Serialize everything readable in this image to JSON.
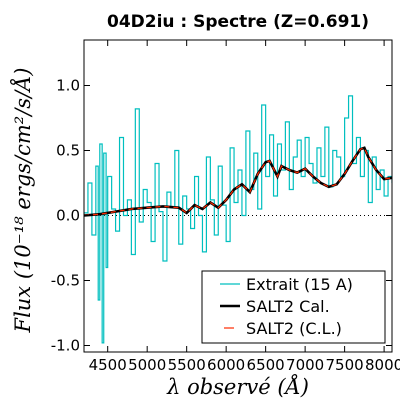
{
  "chart_data": {
    "type": "line",
    "title": "04D2iu : Spectre (Z=0.691)",
    "xlabel": "λ observé (Å)",
    "ylabel": "Flux (10⁻¹⁸ ergs/cm²/s/Å)",
    "xlim": [
      4200,
      8100
    ],
    "ylim": [
      -1.05,
      1.35
    ],
    "xticks": [
      4500,
      5000,
      5500,
      6000,
      6500,
      7000,
      7500,
      8000
    ],
    "yticks": [
      -1.0,
      -0.5,
      0.0,
      0.5,
      1.0
    ],
    "xtick_labels": [
      "4500",
      "5000",
      "5500",
      "6000",
      "6500",
      "7000",
      "7500",
      "8000"
    ],
    "ytick_labels": [
      "-1.0",
      "-0.5",
      "0.0",
      "0.5",
      "1.0"
    ],
    "zero_line": true,
    "legend_position": "lower-right",
    "series": [
      {
        "name": "Extrait (15 A)",
        "color": "#00bfbf",
        "style": "steps",
        "x": [
          4200,
          4250,
          4300,
          4350,
          4380,
          4400,
          4430,
          4450,
          4480,
          4500,
          4550,
          4600,
          4650,
          4700,
          4750,
          4800,
          4850,
          4900,
          4950,
          5000,
          5050,
          5100,
          5150,
          5200,
          5250,
          5300,
          5350,
          5400,
          5450,
          5500,
          5550,
          5600,
          5650,
          5700,
          5750,
          5800,
          5850,
          5900,
          5950,
          6000,
          6050,
          6100,
          6150,
          6200,
          6250,
          6300,
          6350,
          6400,
          6450,
          6500,
          6550,
          6600,
          6650,
          6700,
          6750,
          6800,
          6850,
          6900,
          6950,
          7000,
          7050,
          7100,
          7150,
          7200,
          7250,
          7300,
          7350,
          7400,
          7450,
          7500,
          7550,
          7600,
          7650,
          7700,
          7750,
          7800,
          7850,
          7900,
          7950,
          8000,
          8050,
          8100
        ],
        "y": [
          0.02,
          0.25,
          -0.15,
          0.38,
          -0.65,
          0.55,
          -0.98,
          0.48,
          -0.4,
          0.3,
          0.05,
          -0.12,
          0.6,
          0.0,
          0.12,
          -0.3,
          0.82,
          -0.05,
          0.2,
          0.1,
          -0.2,
          0.4,
          0.03,
          -0.35,
          0.18,
          0.06,
          0.5,
          -0.22,
          0.15,
          0.05,
          -0.1,
          0.3,
          0.0,
          -0.28,
          0.45,
          0.12,
          -0.15,
          0.38,
          0.08,
          -0.2,
          0.52,
          0.1,
          0.35,
          0.0,
          0.65,
          0.2,
          0.48,
          0.05,
          0.85,
          0.3,
          0.62,
          0.15,
          0.55,
          0.35,
          0.72,
          0.2,
          0.45,
          0.58,
          0.3,
          0.6,
          0.4,
          0.25,
          0.52,
          0.3,
          0.68,
          0.22,
          0.5,
          0.45,
          0.3,
          0.75,
          0.92,
          0.4,
          0.6,
          0.3,
          0.5,
          0.1,
          0.45,
          0.2,
          0.35,
          0.15,
          0.3,
          0.25
        ]
      },
      {
        "name": "SALT2 Cal.",
        "color": "#000000",
        "style": "line",
        "x": [
          4200,
          4400,
          4600,
          4800,
          5000,
          5200,
          5400,
          5500,
          5600,
          5700,
          5800,
          5900,
          6000,
          6100,
          6200,
          6300,
          6400,
          6500,
          6550,
          6600,
          6650,
          6700,
          6800,
          6900,
          7000,
          7100,
          7200,
          7300,
          7400,
          7500,
          7600,
          7700,
          7750,
          7800,
          7900,
          8000,
          8100
        ],
        "y": [
          0.0,
          0.01,
          0.03,
          0.05,
          0.06,
          0.07,
          0.06,
          0.02,
          0.08,
          0.05,
          0.1,
          0.06,
          0.12,
          0.2,
          0.24,
          0.18,
          0.32,
          0.41,
          0.42,
          0.36,
          0.3,
          0.38,
          0.35,
          0.33,
          0.36,
          0.3,
          0.25,
          0.22,
          0.24,
          0.32,
          0.42,
          0.51,
          0.52,
          0.45,
          0.35,
          0.28,
          0.29
        ]
      },
      {
        "name": "SALT2 (C.L.)",
        "color": "#ff2a00",
        "style": "dashed",
        "x": [
          4200,
          4400,
          4600,
          4800,
          5000,
          5200,
          5400,
          5500,
          5600,
          5700,
          5800,
          5900,
          6000,
          6100,
          6200,
          6300,
          6400,
          6500,
          6550,
          6600,
          6650,
          6700,
          6800,
          6900,
          7000,
          7100,
          7200,
          7300,
          7400,
          7500,
          7600,
          7700,
          7750,
          7800,
          7900,
          8000,
          8100
        ],
        "y": [
          0.0,
          0.01,
          0.03,
          0.05,
          0.06,
          0.07,
          0.06,
          0.02,
          0.08,
          0.05,
          0.1,
          0.06,
          0.12,
          0.2,
          0.24,
          0.18,
          0.32,
          0.41,
          0.42,
          0.36,
          0.3,
          0.38,
          0.35,
          0.33,
          0.36,
          0.3,
          0.25,
          0.22,
          0.24,
          0.32,
          0.42,
          0.51,
          0.52,
          0.45,
          0.35,
          0.28,
          0.29
        ]
      }
    ]
  }
}
